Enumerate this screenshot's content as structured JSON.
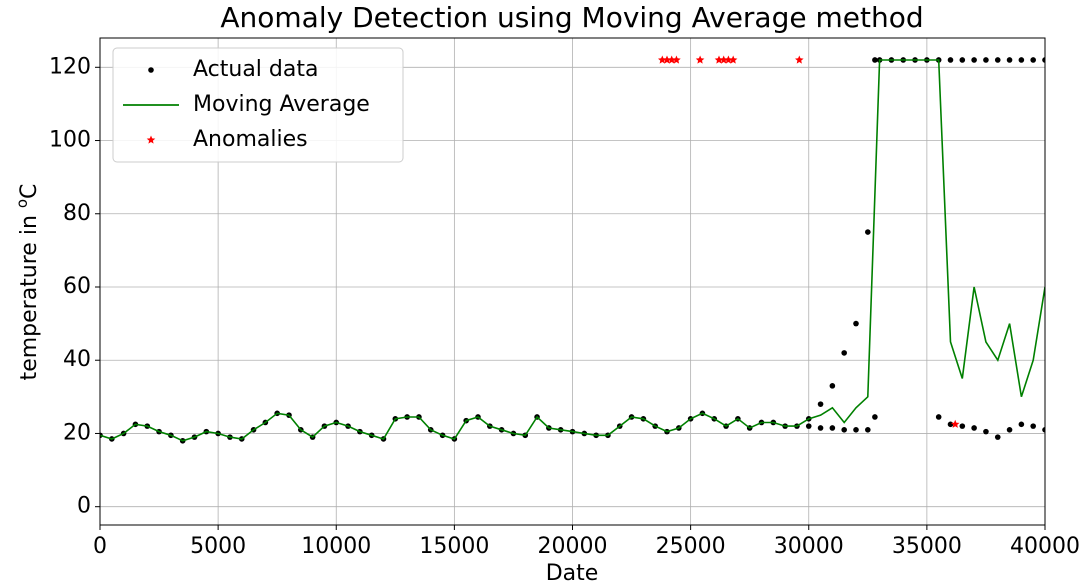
{
  "chart_data": {
    "type": "line",
    "title": "Anomaly Detection using Moving Average method",
    "xlabel": "Date",
    "ylabel": [
      "temperature in ",
      "o",
      "C"
    ],
    "xlim": [
      0,
      40000
    ],
    "ylim": [
      -5,
      128
    ],
    "xticks": [
      0,
      5000,
      10000,
      15000,
      20000,
      25000,
      30000,
      35000,
      40000
    ],
    "yticks": [
      0,
      20,
      40,
      60,
      80,
      100,
      120
    ],
    "grid": true,
    "legend": "upper left",
    "series": [
      {
        "name": "Actual data",
        "color": "#000000",
        "marker": "dot",
        "x": [
          0,
          500,
          1000,
          1500,
          2000,
          2500,
          3000,
          3500,
          4000,
          4500,
          5000,
          5500,
          6000,
          6500,
          7000,
          7500,
          8000,
          8500,
          9000,
          9500,
          10000,
          10500,
          11000,
          11500,
          12000,
          12500,
          13000,
          13500,
          14000,
          14500,
          15000,
          15500,
          16000,
          16500,
          17000,
          17500,
          18000,
          18500,
          19000,
          19500,
          20000,
          20500,
          21000,
          21500,
          22000,
          22500,
          23000,
          23500,
          24000,
          24500,
          25000,
          25500,
          26000,
          26500,
          27000,
          27500,
          28000,
          28500,
          29000,
          29500,
          30000,
          30500,
          31000,
          31500,
          32000,
          32500,
          32800,
          33000,
          33500,
          34000,
          34500,
          35000,
          35500,
          36000,
          36500,
          37000,
          37500,
          38000,
          38500,
          39000,
          39500,
          40000,
          30000,
          30500,
          31000,
          31500,
          32000,
          32500,
          32800,
          35500,
          36000,
          36500,
          37000,
          37500,
          38000,
          38500,
          39000,
          39500,
          40000
        ],
        "values": [
          19.5,
          18.5,
          20,
          22.5,
          22,
          20.5,
          19.5,
          18,
          19,
          20.5,
          20,
          19,
          18.5,
          21,
          23,
          25.5,
          25,
          21,
          19,
          22,
          23,
          22,
          20.5,
          19.5,
          18.5,
          24,
          24.5,
          24.5,
          21,
          19.5,
          18.5,
          23.5,
          24.5,
          22,
          21,
          20,
          19.5,
          24.5,
          21.5,
          21,
          20.5,
          20,
          19.5,
          19.5,
          22,
          24.5,
          24,
          22,
          20.5,
          21.5,
          24,
          25.5,
          24,
          22,
          24,
          21.5,
          23,
          23,
          22,
          22,
          24,
          28,
          33,
          42,
          50,
          75,
          122,
          122,
          122,
          122,
          122,
          122,
          122,
          122,
          122,
          122,
          122,
          122,
          122,
          122,
          122,
          122,
          22,
          21.5,
          21.5,
          21,
          21,
          21,
          24.5,
          24.5,
          22.5,
          22,
          21.5,
          20.5,
          19,
          21,
          22.5,
          22,
          21
        ]
      },
      {
        "name": "Moving Average",
        "color": "#008000",
        "marker": "line",
        "x": [
          0,
          500,
          1000,
          1500,
          2000,
          2500,
          3000,
          3500,
          4000,
          4500,
          5000,
          5500,
          6000,
          6500,
          7000,
          7500,
          8000,
          8500,
          9000,
          9500,
          10000,
          10500,
          11000,
          11500,
          12000,
          12500,
          13000,
          13500,
          14000,
          14500,
          15000,
          15500,
          16000,
          16500,
          17000,
          17500,
          18000,
          18500,
          19000,
          19500,
          20000,
          20500,
          21000,
          21500,
          22000,
          22500,
          23000,
          23500,
          24000,
          24500,
          25000,
          25500,
          26000,
          26500,
          27000,
          27500,
          28000,
          28500,
          29000,
          29500,
          30000,
          30500,
          31000,
          31500,
          32000,
          32500,
          33000,
          33500,
          34000,
          34500,
          35000,
          35500,
          36000,
          36500,
          37000,
          37500,
          38000,
          38500,
          39000,
          39500,
          40000
        ],
        "values": [
          19.5,
          18.5,
          20,
          22.5,
          22,
          20.5,
          19.5,
          18,
          19,
          20.5,
          20,
          19,
          18.5,
          21,
          23,
          25.5,
          25,
          21,
          19,
          22,
          23,
          22,
          20.5,
          19.5,
          18.5,
          24,
          24.5,
          24.5,
          21,
          19.5,
          18.5,
          23.5,
          24.5,
          22,
          21,
          20,
          19.5,
          24.5,
          21.5,
          21,
          20.5,
          20,
          19.5,
          19.5,
          22,
          24.5,
          24,
          22,
          20.5,
          21.5,
          24,
          25.5,
          24,
          22,
          24,
          21.5,
          23,
          23,
          22,
          22,
          24,
          25,
          27,
          23,
          27,
          30,
          122,
          122,
          122,
          122,
          122,
          122,
          45,
          35,
          60,
          45,
          40,
          50,
          30,
          40,
          60
        ]
      },
      {
        "name": "Anomalies",
        "color": "#ff0000",
        "marker": "star",
        "x": [
          23800,
          24000,
          24200,
          24400,
          25400,
          26200,
          26400,
          26600,
          26800,
          29600,
          36200
        ],
        "values": [
          122,
          122,
          122,
          122,
          122,
          122,
          122,
          122,
          122,
          122,
          22.5
        ]
      }
    ]
  }
}
